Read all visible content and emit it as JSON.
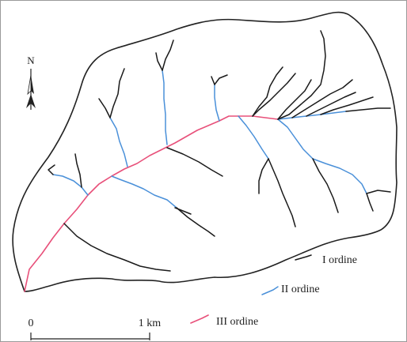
{
  "north": {
    "label": "N"
  },
  "legend": {
    "items": [
      {
        "key": "first",
        "label": "I ordine",
        "color": "#1a1a1a"
      },
      {
        "key": "second",
        "label": "II ordine",
        "color": "#4a90d9"
      },
      {
        "key": "third",
        "label": "III ordine",
        "color": "#e8507a"
      }
    ]
  },
  "scale": {
    "start_label": "0",
    "end_label": "1 km"
  },
  "colors": {
    "boundary": "#222222",
    "order1": "#1a1a1a",
    "order2": "#4a90d9",
    "order3": "#e8507a"
  }
}
